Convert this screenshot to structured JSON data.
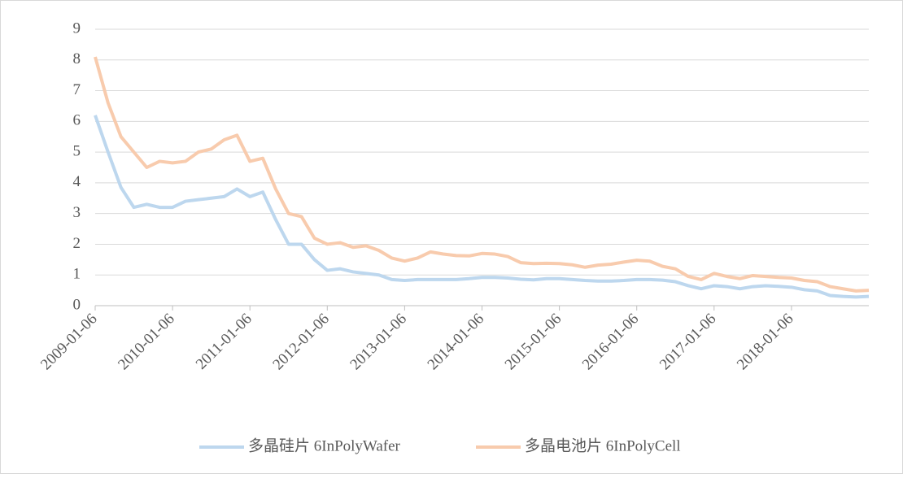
{
  "chart_data": {
    "type": "line",
    "categories": [
      "2009-01-06",
      null,
      null,
      null,
      null,
      null,
      "2010-01-06",
      null,
      null,
      null,
      null,
      null,
      "2011-01-06",
      null,
      null,
      null,
      null,
      null,
      "2012-01-06",
      null,
      null,
      null,
      null,
      null,
      "2013-01-06",
      null,
      null,
      null,
      null,
      null,
      "2014-01-06",
      null,
      null,
      null,
      null,
      null,
      "2015-01-06",
      null,
      null,
      null,
      null,
      null,
      "2016-01-06",
      null,
      null,
      null,
      null,
      null,
      "2017-01-06",
      null,
      null,
      null,
      null,
      null,
      "2018-01-06",
      null,
      null,
      null,
      null,
      null,
      null
    ],
    "series": [
      {
        "name": "多晶硅片 6InPolyWafer",
        "color": "#bdd7ee",
        "values": [
          6.2,
          5.0,
          3.85,
          3.2,
          3.3,
          3.2,
          3.2,
          3.4,
          3.45,
          3.5,
          3.55,
          3.8,
          3.55,
          3.7,
          2.8,
          2.0,
          2.0,
          1.5,
          1.15,
          1.2,
          1.1,
          1.05,
          1.0,
          0.85,
          0.82,
          0.85,
          0.85,
          0.85,
          0.85,
          0.88,
          0.92,
          0.92,
          0.9,
          0.86,
          0.84,
          0.88,
          0.88,
          0.85,
          0.82,
          0.8,
          0.8,
          0.82,
          0.85,
          0.85,
          0.83,
          0.78,
          0.65,
          0.55,
          0.65,
          0.62,
          0.55,
          0.62,
          0.65,
          0.63,
          0.6,
          0.52,
          0.48,
          0.33,
          0.3,
          0.28,
          0.3
        ]
      },
      {
        "name": "多晶电池片 6InPolyCell",
        "color": "#f8cbad",
        "values": [
          8.1,
          6.6,
          5.5,
          5.0,
          4.5,
          4.7,
          4.65,
          4.7,
          5.0,
          5.1,
          5.4,
          5.55,
          4.7,
          4.8,
          3.8,
          3.0,
          2.9,
          2.2,
          2.0,
          2.05,
          1.9,
          1.95,
          1.8,
          1.55,
          1.45,
          1.55,
          1.75,
          1.68,
          1.63,
          1.62,
          1.7,
          1.68,
          1.6,
          1.4,
          1.37,
          1.38,
          1.37,
          1.33,
          1.25,
          1.32,
          1.35,
          1.42,
          1.48,
          1.45,
          1.28,
          1.2,
          0.95,
          0.85,
          1.05,
          0.95,
          0.88,
          0.98,
          0.95,
          0.92,
          0.9,
          0.82,
          0.78,
          0.62,
          0.55,
          0.48,
          0.5
        ]
      }
    ],
    "ylim": [
      0,
      9
    ],
    "yticks": [
      0,
      1,
      2,
      3,
      4,
      5,
      6,
      7,
      8,
      9
    ],
    "grid": true,
    "legend": "bottom"
  }
}
